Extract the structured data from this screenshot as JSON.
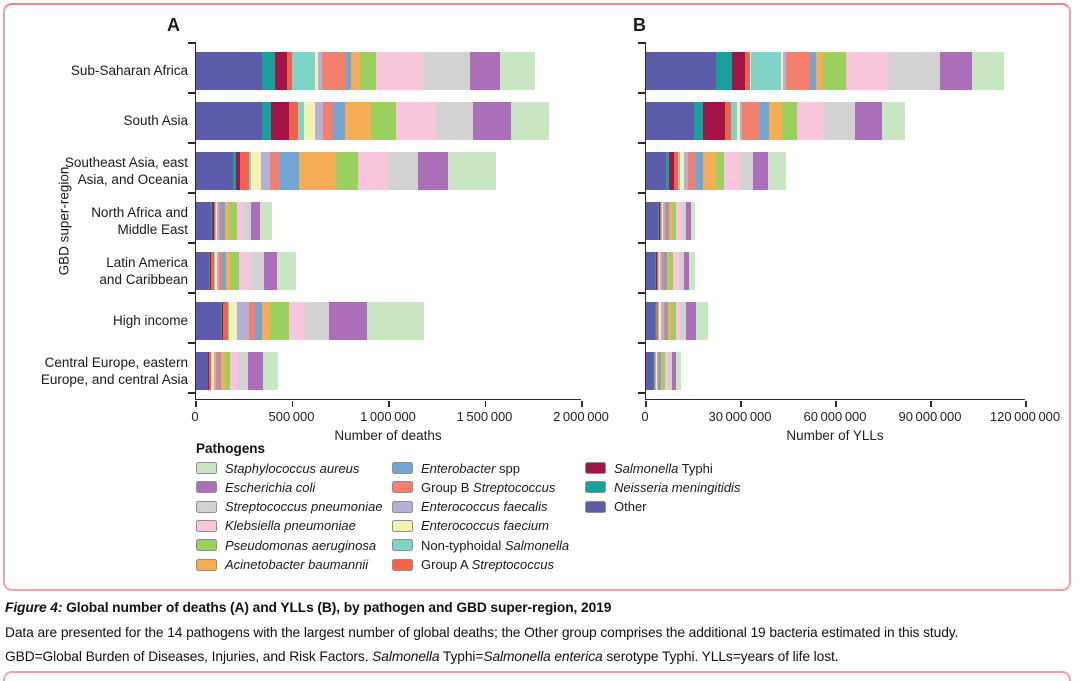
{
  "y_axis_label": "GBD super-region",
  "legend": {
    "title": "Pathogens",
    "columns": [
      [
        "s_aureus",
        "e_coli",
        "s_pneumoniae",
        "klebsiella",
        "pseudomonas",
        "acinetobacter"
      ],
      [
        "enterobacter",
        "group_b_strep",
        "e_faecalis",
        "e_faecium",
        "nts",
        "group_a_strep"
      ],
      [
        "s_typhi",
        "n_meningitidis",
        "other"
      ]
    ]
  },
  "pathogens": {
    "s_aureus": {
      "name": "Staphylococcus aureus",
      "color": "#c9e6c3",
      "parts": [
        {
          "t": "Staphylococcus aureus",
          "i": true
        }
      ]
    },
    "e_coli": {
      "name": "Escherichia coli",
      "color": "#aa6fb8",
      "parts": [
        {
          "t": "Escherichia coli",
          "i": true
        }
      ]
    },
    "s_pneumoniae": {
      "name": "Streptococcus pneumoniae",
      "color": "#d2d2d2",
      "parts": [
        {
          "t": "Streptococcus pneumoniae",
          "i": true
        }
      ]
    },
    "klebsiella": {
      "name": "Klebsiella pneumoniae",
      "color": "#f7c5dc",
      "parts": [
        {
          "t": "Klebsiella pneumoniae",
          "i": true
        }
      ]
    },
    "pseudomonas": {
      "name": "Pseudomonas aeruginosa",
      "color": "#9bd05f",
      "parts": [
        {
          "t": "Pseudomonas aeruginosa",
          "i": true
        }
      ]
    },
    "acinetobacter": {
      "name": "Acinetobacter baumannii",
      "color": "#f5ae55",
      "parts": [
        {
          "t": "Acinetobacter baumannii",
          "i": true
        }
      ]
    },
    "enterobacter": {
      "name": "Enterobacter spp",
      "color": "#72a5d3",
      "parts": [
        {
          "t": "Enterobacter",
          "i": true
        },
        {
          "t": " spp",
          "i": false
        }
      ]
    },
    "group_b_strep": {
      "name": "Group B Streptococcus",
      "color": "#f47f6d",
      "parts": [
        {
          "t": "Group B ",
          "i": false
        },
        {
          "t": "Streptococcus",
          "i": true
        }
      ]
    },
    "e_faecalis": {
      "name": "Enterococcus faecalis",
      "color": "#b4b0d8",
      "parts": [
        {
          "t": "Enterococcus faecalis",
          "i": true
        }
      ]
    },
    "e_faecium": {
      "name": "Enterococcus faecium",
      "color": "#f3f2b0",
      "parts": [
        {
          "t": "Enterococcus faecium",
          "i": true
        }
      ]
    },
    "nts": {
      "name": "Non-typhoidal Salmonella",
      "color": "#7ed4c6",
      "parts": [
        {
          "t": "Non-typhoidal ",
          "i": false
        },
        {
          "t": "Salmonella",
          "i": true
        }
      ]
    },
    "group_a_strep": {
      "name": "Group A Streptococcus",
      "color": "#f0634a",
      "parts": [
        {
          "t": "Group A ",
          "i": false
        },
        {
          "t": "Streptococcus",
          "i": true
        }
      ]
    },
    "s_typhi": {
      "name": "Salmonella Typhi",
      "color": "#a21448",
      "parts": [
        {
          "t": "Salmonella",
          "i": true
        },
        {
          "t": " Typhi",
          "i": false
        }
      ]
    },
    "n_meningitidis": {
      "name": "Neisseria meningitidis",
      "color": "#16a29a",
      "parts": [
        {
          "t": "Neisseria meningitidis",
          "i": true
        }
      ]
    },
    "other": {
      "name": "Other",
      "color": "#5c5cab",
      "parts": [
        {
          "t": "Other",
          "i": false
        }
      ]
    }
  },
  "stack_order": [
    "other",
    "n_meningitidis",
    "s_typhi",
    "group_a_strep",
    "nts",
    "e_faecium",
    "e_faecalis",
    "group_b_strep",
    "enterobacter",
    "acinetobacter",
    "pseudomonas",
    "klebsiella",
    "s_pneumoniae",
    "e_coli",
    "s_aureus"
  ],
  "regions": [
    {
      "name": "Sub-Saharan Africa",
      "lines": [
        "Sub-Saharan Africa"
      ]
    },
    {
      "name": "South Asia",
      "lines": [
        "South Asia"
      ]
    },
    {
      "name": "Southeast Asia, east Asia, and Oceania",
      "lines": [
        "Southeast Asia, east",
        "Asia, and Oceania"
      ]
    },
    {
      "name": "North Africa and Middle East",
      "lines": [
        "North Africa and",
        "Middle East"
      ]
    },
    {
      "name": "Latin America and Caribbean",
      "lines": [
        "Latin America",
        "and Caribbean"
      ]
    },
    {
      "name": "High income",
      "lines": [
        "High income"
      ]
    },
    {
      "name": "Central Europe, eastern Europe, and central Asia",
      "lines": [
        "Central Europe, eastern",
        "Europe, and central Asia"
      ]
    }
  ],
  "chart_data": [
    {
      "type": "bar",
      "orientation": "horizontal",
      "stacked": true,
      "panel_label": "A",
      "xlabel": "Number of deaths",
      "xlim": [
        0,
        2000000
      ],
      "grid": false,
      "legend_position": "bottom",
      "xticks": [
        {
          "v": 0,
          "label": "0"
        },
        {
          "v": 500000,
          "label": "500 000"
        },
        {
          "v": 1000000,
          "label": "1 000 000"
        },
        {
          "v": 1500000,
          "label": "1 500 000"
        },
        {
          "v": 2000000,
          "label": "2 000 000"
        }
      ],
      "categories": [
        "Sub-Saharan Africa",
        "South Asia",
        "Southeast Asia, east Asia, and Oceania",
        "North Africa and Middle East",
        "Latin America and Caribbean",
        "High income",
        "Central Europe, eastern Europe, and central Asia"
      ],
      "series": [
        {
          "id": "other",
          "name": "Other",
          "values": [
            340000,
            342000,
            190000,
            78000,
            69000,
            130000,
            60000
          ]
        },
        {
          "id": "n_meningitidis",
          "name": "Neisseria meningitidis",
          "values": [
            70000,
            47000,
            17000,
            6000,
            6000,
            6000,
            4000
          ]
        },
        {
          "id": "s_typhi",
          "name": "Salmonella Typhi",
          "values": [
            60000,
            95000,
            21000,
            7000,
            5000,
            2000,
            2000
          ]
        },
        {
          "id": "group_a_strep",
          "name": "Group A Streptococcus",
          "values": [
            26000,
            43000,
            48000,
            7000,
            12000,
            27000,
            10000
          ]
        },
        {
          "id": "nts",
          "name": "Non-typhoidal Salmonella",
          "values": [
            120000,
            35000,
            10000,
            6000,
            6000,
            5000,
            4000
          ]
        },
        {
          "id": "e_faecium",
          "name": "Enterococcus faecium",
          "values": [
            17000,
            57000,
            50000,
            7000,
            10000,
            43000,
            12000
          ]
        },
        {
          "id": "e_faecalis",
          "name": "Enterococcus faecalis",
          "values": [
            22000,
            38000,
            47000,
            9000,
            12000,
            60000,
            14000
          ]
        },
        {
          "id": "group_b_strep",
          "name": "Group B Streptococcus",
          "values": [
            124000,
            55000,
            45000,
            12000,
            16000,
            35000,
            12000
          ]
        },
        {
          "id": "enterobacter",
          "name": "Enterobacter spp",
          "values": [
            26000,
            62000,
            107000,
            17000,
            20000,
            35000,
            14000
          ]
        },
        {
          "id": "acinetobacter",
          "name": "Acinetobacter baumannii",
          "values": [
            43000,
            133000,
            190000,
            21000,
            21000,
            43000,
            18000
          ]
        },
        {
          "id": "pseudomonas",
          "name": "Pseudomonas aeruginosa",
          "values": [
            87000,
            130000,
            112000,
            40000,
            45000,
            95000,
            26000
          ]
        },
        {
          "id": "klebsiella",
          "name": "Klebsiella pneumoniae",
          "values": [
            242000,
            207000,
            164000,
            35000,
            62000,
            86000,
            43000
          ]
        },
        {
          "id": "s_pneumoniae",
          "name": "Streptococcus pneumoniae",
          "values": [
            242000,
            193000,
            147000,
            40000,
            69000,
            121000,
            52000
          ]
        },
        {
          "id": "e_coli",
          "name": "Escherichia coli",
          "values": [
            156000,
            195000,
            156000,
            47000,
            69000,
            199000,
            78000
          ]
        },
        {
          "id": "s_aureus",
          "name": "Staphylococcus aureus",
          "values": [
            181000,
            199000,
            250000,
            60000,
            95000,
            294000,
            78000
          ]
        }
      ]
    },
    {
      "type": "bar",
      "orientation": "horizontal",
      "stacked": true,
      "panel_label": "B",
      "xlabel": "Number of YLLs",
      "xlim": [
        0,
        120000000
      ],
      "grid": false,
      "legend_position": "bottom",
      "xticks": [
        {
          "v": 0,
          "label": "0"
        },
        {
          "v": 30000000,
          "label": "30 000 000"
        },
        {
          "v": 60000000,
          "label": "60 000 000"
        },
        {
          "v": 90000000,
          "label": "90 000 000"
        },
        {
          "v": 120000000,
          "label": "120 000 000"
        }
      ],
      "categories": [
        "Sub-Saharan Africa",
        "South Asia",
        "Southeast Asia, east Asia, and Oceania",
        "North Africa and Middle East",
        "Latin America and Caribbean",
        "High income",
        "Central Europe, eastern Europe, and central Asia"
      ],
      "series": [
        {
          "id": "other",
          "name": "Other",
          "values": [
            22100000,
            15200000,
            6300000,
            3900000,
            2900000,
            2900000,
            2300000
          ]
        },
        {
          "id": "n_meningitidis",
          "name": "Neisseria meningitidis",
          "values": [
            5100000,
            2800000,
            1000000,
            350000,
            300000,
            200000,
            150000
          ]
        },
        {
          "id": "s_typhi",
          "name": "Salmonella Typhi",
          "values": [
            4200000,
            6900000,
            1600000,
            300000,
            200000,
            100000,
            50000
          ]
        },
        {
          "id": "group_a_strep",
          "name": "Group A Streptococcus",
          "values": [
            1600000,
            1800000,
            1300000,
            300000,
            500000,
            600000,
            350000
          ]
        },
        {
          "id": "nts",
          "name": "Non-typhoidal Salmonella",
          "values": [
            9700000,
            2100000,
            600000,
            350000,
            300000,
            150000,
            150000
          ]
        },
        {
          "id": "e_faecium",
          "name": "Enterococcus faecium",
          "values": [
            600000,
            800000,
            1300000,
            300000,
            300000,
            700000,
            350000
          ]
        },
        {
          "id": "e_faecalis",
          "name": "Enterococcus faecalis",
          "values": [
            1000000,
            700000,
            1100000,
            400000,
            400000,
            1000000,
            400000
          ]
        },
        {
          "id": "group_b_strep",
          "name": "Group B Streptococcus",
          "values": [
            7400000,
            5300000,
            2200000,
            700000,
            800000,
            700000,
            400000
          ]
        },
        {
          "id": "enterobacter",
          "name": "Enterobacter spp",
          "values": [
            2100000,
            3200000,
            2500000,
            800000,
            900000,
            700000,
            450000
          ]
        },
        {
          "id": "acinetobacter",
          "name": "Acinetobacter baumannii",
          "values": [
            2100000,
            4200000,
            4100000,
            900000,
            800000,
            800000,
            600000
          ]
        },
        {
          "id": "pseudomonas",
          "name": "Pseudomonas aeruginosa",
          "values": [
            7400000,
            4700000,
            2500000,
            1300000,
            1200000,
            1500000,
            700000
          ]
        },
        {
          "id": "klebsiella",
          "name": "Klebsiella pneumoniae",
          "values": [
            13000000,
            8400000,
            5400000,
            1800000,
            1700000,
            1500000,
            1100000
          ]
        },
        {
          "id": "s_pneumoniae",
          "name": "Streptococcus pneumoniae",
          "values": [
            16600000,
            10000000,
            3800000,
            1300000,
            1700000,
            1800000,
            1200000
          ]
        },
        {
          "id": "e_coli",
          "name": "Escherichia coli",
          "values": [
            10000000,
            8400000,
            4700000,
            1500000,
            1600000,
            3000000,
            1400000
          ]
        },
        {
          "id": "s_aureus",
          "name": "Staphylococcus aureus",
          "values": [
            10000000,
            7400000,
            5700000,
            1200000,
            1900000,
            3900000,
            1400000
          ]
        }
      ]
    }
  ],
  "caption": {
    "lines": [
      {
        "parts": [
          {
            "t": "Figure 4:",
            "b": true,
            "i": true
          },
          {
            "t": " Global number of deaths (A) and YLLs (B), by pathogen and GBD super-region, 2019",
            "b": true
          }
        ]
      },
      {
        "parts": [
          {
            "t": "Data are presented for the 14 pathogens with the largest number of global deaths; the Other group comprises the additional 19 bacteria estimated in this study."
          }
        ]
      },
      {
        "parts": [
          {
            "t": "GBD=Global Burden of Diseases, Injuries, and Risk Factors. "
          },
          {
            "t": "Salmonella",
            "i": true
          },
          {
            "t": " Typhi="
          },
          {
            "t": "Salmonella enterica",
            "i": true
          },
          {
            "t": " serotype Typhi. YLLs=years of life lost."
          }
        ]
      }
    ]
  }
}
